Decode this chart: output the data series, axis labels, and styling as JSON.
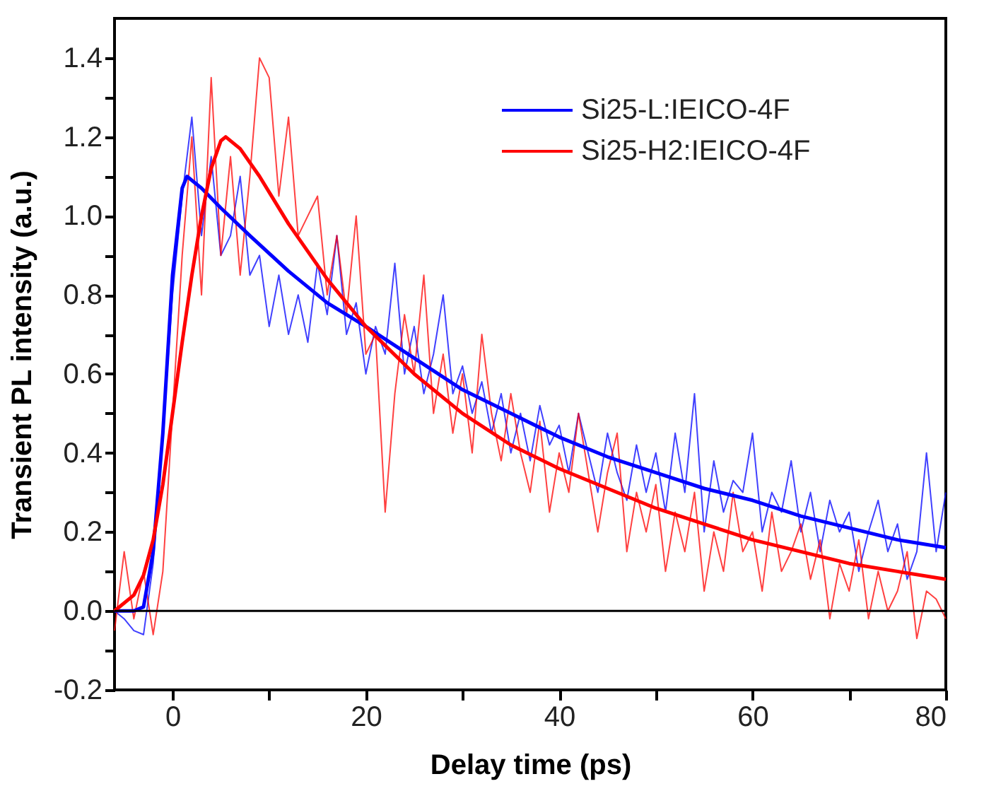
{
  "chart_data": {
    "type": "line",
    "xlabel": "Delay time (ps)",
    "ylabel": "Transient PL intensity (a.u.)",
    "x": [
      -6,
      -5,
      -4,
      -3,
      -2,
      -1,
      0,
      1,
      2,
      3,
      4,
      5,
      6,
      7,
      8,
      9,
      10,
      11,
      12,
      13,
      14,
      15,
      16,
      17,
      18,
      19,
      20,
      21,
      22,
      23,
      24,
      25,
      26,
      27,
      28,
      29,
      30,
      31,
      32,
      33,
      34,
      35,
      36,
      37,
      38,
      39,
      40,
      41,
      42,
      43,
      44,
      45,
      46,
      47,
      48,
      49,
      50,
      51,
      52,
      53,
      54,
      55,
      56,
      57,
      58,
      59,
      60,
      61,
      62,
      63,
      64,
      65,
      66,
      67,
      68,
      69,
      70,
      71,
      72,
      73,
      74,
      75,
      76,
      77,
      78,
      79,
      80
    ],
    "series": [
      {
        "name": "Si25-L:IEICO-4F",
        "color": "#0000ff",
        "values": [
          0,
          -0.02,
          -0.05,
          -0.06,
          0.12,
          0.45,
          0.8,
          1.05,
          1.25,
          0.95,
          1.15,
          0.9,
          0.95,
          1.1,
          0.85,
          0.9,
          0.72,
          0.85,
          0.7,
          0.8,
          0.68,
          0.88,
          0.75,
          0.95,
          0.7,
          0.78,
          0.6,
          0.72,
          0.65,
          0.88,
          0.6,
          0.72,
          0.55,
          0.65,
          0.8,
          0.55,
          0.62,
          0.5,
          0.58,
          0.45,
          0.55,
          0.4,
          0.5,
          0.38,
          0.52,
          0.42,
          0.47,
          0.35,
          0.5,
          0.4,
          0.3,
          0.45,
          0.35,
          0.28,
          0.42,
          0.3,
          0.4,
          0.25,
          0.45,
          0.3,
          0.55,
          0.2,
          0.38,
          0.25,
          0.33,
          0.3,
          0.45,
          0.2,
          0.3,
          0.25,
          0.38,
          0.2,
          0.3,
          0.15,
          0.28,
          0.2,
          0.25,
          0.1,
          0.2,
          0.28,
          0.15,
          0.22,
          0.08,
          0.15,
          0.4,
          0.15,
          0.3
        ]
      },
      {
        "name": "Si25-H2:IEICO-4F",
        "color": "#ff0000",
        "values": [
          -0.05,
          0.15,
          -0.02,
          0.1,
          -0.06,
          0.1,
          0.5,
          0.9,
          1.2,
          0.8,
          1.35,
          0.9,
          1.15,
          0.85,
          1.1,
          1.4,
          1.35,
          1.05,
          1.25,
          0.95,
          1.0,
          1.05,
          0.8,
          0.95,
          0.75,
          1.0,
          0.65,
          0.7,
          0.25,
          0.55,
          0.75,
          0.6,
          0.85,
          0.5,
          0.65,
          0.45,
          0.6,
          0.4,
          0.7,
          0.5,
          0.38,
          0.55,
          0.4,
          0.3,
          0.48,
          0.25,
          0.4,
          0.3,
          0.5,
          0.35,
          0.2,
          0.35,
          0.45,
          0.15,
          0.3,
          0.2,
          0.32,
          0.1,
          0.25,
          0.15,
          0.3,
          0.05,
          0.2,
          0.1,
          0.3,
          0.15,
          0.2,
          0.05,
          0.25,
          0.1,
          0.15,
          0.22,
          0.08,
          0.18,
          -0.02,
          0.12,
          0.05,
          0.18,
          -0.02,
          0.1,
          0.0,
          0.05,
          0.15,
          -0.07,
          0.05,
          0.03,
          -0.02
        ]
      },
      {
        "color": "#0000ff",
        "x": [
          -6,
          -4,
          -3,
          -2,
          -1,
          0,
          1,
          1.5,
          3,
          5,
          8,
          12,
          16,
          20,
          25,
          30,
          35,
          40,
          45,
          50,
          55,
          60,
          65,
          70,
          75,
          80
        ],
        "values": [
          0,
          0,
          0.01,
          0.15,
          0.45,
          0.85,
          1.07,
          1.1,
          1.07,
          1.02,
          0.95,
          0.86,
          0.78,
          0.72,
          0.64,
          0.56,
          0.5,
          0.44,
          0.39,
          0.35,
          0.31,
          0.28,
          0.24,
          0.21,
          0.18,
          0.16
        ]
      },
      {
        "color": "#ff0000",
        "x": [
          -6,
          -4,
          -3,
          -2,
          -1,
          0,
          1,
          2,
          3,
          4,
          5,
          5.5,
          7,
          9,
          12,
          16,
          20,
          25,
          30,
          35,
          40,
          45,
          50,
          55,
          60,
          65,
          70,
          75,
          80
        ],
        "values": [
          0,
          0.04,
          0.09,
          0.18,
          0.32,
          0.5,
          0.68,
          0.85,
          1.0,
          1.12,
          1.19,
          1.2,
          1.17,
          1.1,
          0.98,
          0.84,
          0.72,
          0.6,
          0.5,
          0.42,
          0.36,
          0.31,
          0.26,
          0.22,
          0.18,
          0.15,
          0.12,
          0.1,
          0.08
        ]
      }
    ],
    "xlim": [
      -6,
      80
    ],
    "xticks": [
      0,
      {
        "value": 10,
        "label": null
      },
      20,
      {
        "value": 30,
        "label": null
      },
      40,
      {
        "value": 50,
        "label": null
      },
      60,
      {
        "value": 70,
        "label": null
      },
      80
    ],
    "ylim": [
      -0.2,
      1.5
    ],
    "yticks": [
      {
        "value": -0.2,
        "label": "-0.2"
      },
      {
        "value": -0.1,
        "label": null
      },
      {
        "value": 0,
        "label": "0.0"
      },
      {
        "value": 0.1,
        "label": null
      },
      {
        "value": 0.2,
        "label": "0.2"
      },
      {
        "value": 0.3,
        "label": null
      },
      {
        "value": 0.4,
        "label": "0.4"
      },
      {
        "value": 0.5,
        "label": null
      },
      {
        "value": 0.6,
        "label": "0.6"
      },
      {
        "value": 0.7,
        "label": null
      },
      {
        "value": 0.8,
        "label": "0.8"
      },
      {
        "value": 0.9,
        "label": null
      },
      {
        "value": 1.0,
        "label": "1.0"
      },
      {
        "value": 1.1,
        "label": null
      },
      {
        "value": 1.2,
        "label": "1.2"
      },
      {
        "value": 1.3,
        "label": null
      },
      {
        "value": 1.4,
        "label": "1.4"
      }
    ],
    "ref_lines": [
      {
        "axis": "y",
        "value": 0,
        "color": "#000000"
      }
    ],
    "grid": false,
    "legend": "top right",
    "marker": "none",
    "line_style": "solid"
  }
}
